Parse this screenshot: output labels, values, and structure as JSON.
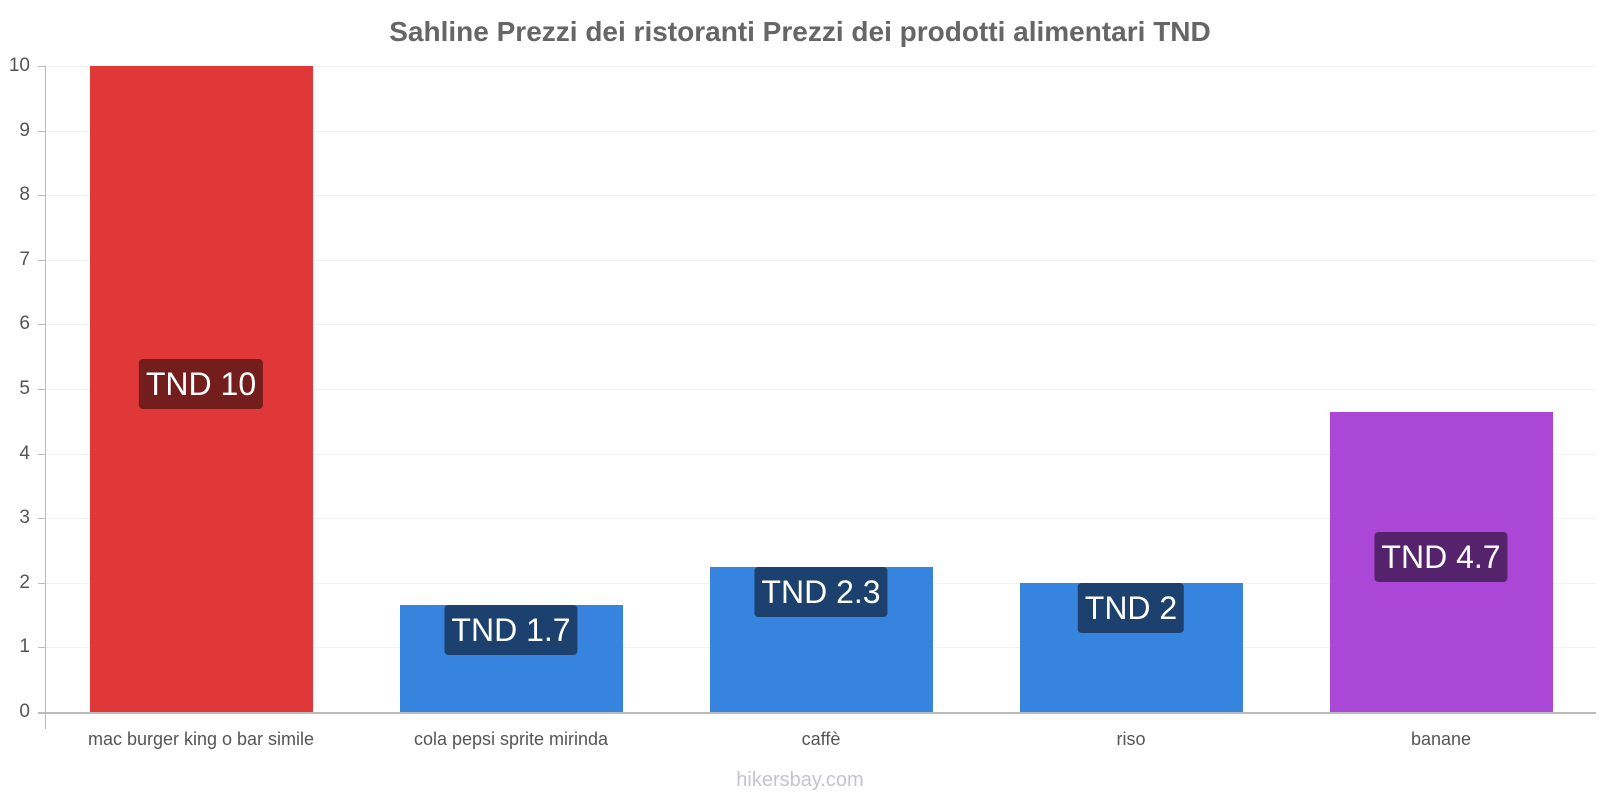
{
  "chart_data": {
    "type": "bar",
    "title": "Sahline Prezzi dei ristoranti Prezzi dei prodotti alimentari TND",
    "xlabel": "",
    "ylabel": "",
    "ylim": [
      0,
      10
    ],
    "yticks": [
      "0",
      "1",
      "2",
      "3",
      "4",
      "5",
      "6",
      "7",
      "8",
      "9",
      "10"
    ],
    "grid": true,
    "legend": null,
    "categories": [
      "mac burger king o bar simile",
      "cola pepsi sprite mirinda",
      "caffè",
      "riso",
      "banane"
    ],
    "values": [
      10,
      1.65,
      2.25,
      2.0,
      4.65
    ],
    "data_labels": [
      "TND 10",
      "TND 1.7",
      "TND 2.3",
      "TND 2",
      "TND 4.7"
    ],
    "bar_colors": [
      "#e03838",
      "#3684de",
      "#3684de",
      "#3684de",
      "#ab47d6"
    ],
    "label_colors": [
      "#741d1d",
      "#1c416e",
      "#1c416e",
      "#1c416e",
      "#55236b"
    ]
  },
  "watermark": "hikersbay.com"
}
